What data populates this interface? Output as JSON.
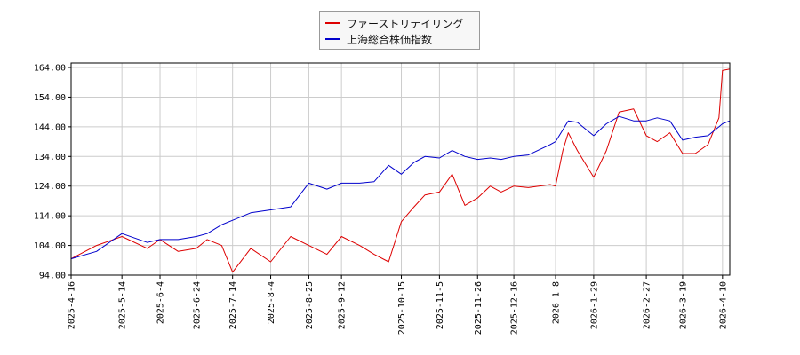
{
  "chart_data": {
    "type": "line",
    "title": "",
    "xlabel": "",
    "ylabel": "",
    "ylim": [
      94,
      165.5
    ],
    "yticks": [
      "94.00",
      "104.00",
      "114.00",
      "124.00",
      "134.00",
      "144.00",
      "154.00",
      "164.00"
    ],
    "xticks": [
      "2025-4-16",
      "2025-5-14",
      "2025-6-4",
      "2025-6-24",
      "2025-7-14",
      "2025-8-4",
      "2025-8-25",
      "2025-9-12",
      "2025-10-15",
      "2025-11-5",
      "2025-11-26",
      "2025-12-16",
      "2026-1-8",
      "2026-1-29",
      "2026-2-27",
      "2026-3-19",
      "2026-4-10"
    ],
    "grid": true,
    "legend_position": "top-center",
    "series": [
      {
        "name": "ファーストリテイリング",
        "color": "#dd0000",
        "x": [
          "2025-4-16",
          "2025-4-30",
          "2025-5-14",
          "2025-5-28",
          "2025-6-4",
          "2025-6-14",
          "2025-6-24",
          "2025-6-30",
          "2025-7-8",
          "2025-7-14",
          "2025-7-24",
          "2025-8-4",
          "2025-8-15",
          "2025-8-25",
          "2025-9-4",
          "2025-9-12",
          "2025-9-22",
          "2025-9-30",
          "2025-10-8",
          "2025-10-15",
          "2025-10-22",
          "2025-10-28",
          "2025-11-5",
          "2025-11-12",
          "2025-11-19",
          "2025-11-26",
          "2025-12-3",
          "2025-12-9",
          "2025-12-16",
          "2025-12-24",
          "2026-1-5",
          "2026-1-8",
          "2026-1-12",
          "2026-1-15",
          "2026-1-20",
          "2026-1-29",
          "2026-2-5",
          "2026-2-12",
          "2026-2-20",
          "2026-2-27",
          "2026-3-5",
          "2026-3-12",
          "2026-3-19",
          "2026-3-26",
          "2026-4-2",
          "2026-4-8",
          "2026-4-10",
          "2026-4-14"
        ],
        "values": [
          99.5,
          104,
          107,
          103,
          106,
          102,
          103,
          106,
          104,
          95,
          103,
          98.5,
          107,
          104,
          101,
          107,
          104,
          101,
          98.5,
          112,
          117,
          121,
          122,
          128,
          117.5,
          120,
          124,
          122,
          124,
          123.5,
          124.5,
          124,
          136,
          142,
          136,
          127,
          136,
          149,
          150,
          141,
          139,
          142,
          135,
          135,
          138,
          147,
          163,
          163.5
        ]
      },
      {
        "name": "上海総合株価指数",
        "color": "#0000cc",
        "x": [
          "2025-4-16",
          "2025-4-30",
          "2025-5-14",
          "2025-5-28",
          "2025-6-4",
          "2025-6-14",
          "2025-6-24",
          "2025-6-30",
          "2025-7-8",
          "2025-7-14",
          "2025-7-24",
          "2025-8-4",
          "2025-8-15",
          "2025-8-25",
          "2025-9-4",
          "2025-9-12",
          "2025-9-22",
          "2025-9-30",
          "2025-10-8",
          "2025-10-15",
          "2025-10-22",
          "2025-10-28",
          "2025-11-5",
          "2025-11-12",
          "2025-11-19",
          "2025-11-26",
          "2025-12-3",
          "2025-12-9",
          "2025-12-16",
          "2025-12-24",
          "2026-1-5",
          "2026-1-8",
          "2026-1-12",
          "2026-1-15",
          "2026-1-20",
          "2026-1-29",
          "2026-2-5",
          "2026-2-12",
          "2026-2-20",
          "2026-2-27",
          "2026-3-5",
          "2026-3-12",
          "2026-3-19",
          "2026-3-26",
          "2026-4-2",
          "2026-4-8",
          "2026-4-10",
          "2026-4-14"
        ],
        "values": [
          99.5,
          102,
          108,
          105,
          106,
          106,
          107,
          108,
          111,
          112.5,
          115,
          116,
          117,
          125,
          123,
          125,
          125,
          125.5,
          131,
          128,
          132,
          134,
          133.5,
          136,
          134,
          133,
          133.5,
          133,
          134,
          134.5,
          138,
          139,
          143,
          146,
          145.5,
          141,
          145,
          147.5,
          146,
          146,
          147,
          146,
          139.5,
          140.5,
          141,
          144,
          145,
          146
        ]
      }
    ]
  }
}
